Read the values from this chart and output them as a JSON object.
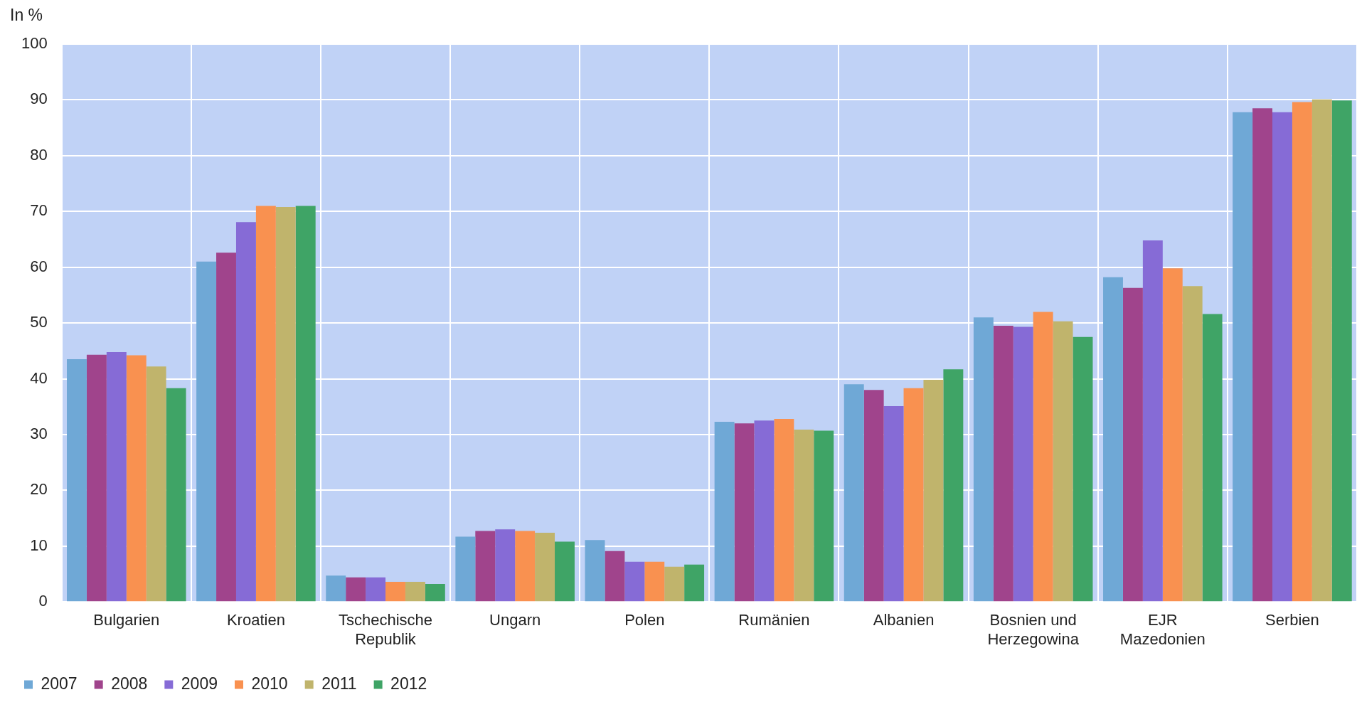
{
  "chart_data": {
    "type": "bar",
    "ylabel": "In %",
    "categories": [
      "Bulgarien",
      "Kroatien",
      "Tschechische Republik",
      "Ungarn",
      "Polen",
      "Rumänien",
      "Albanien",
      "Bosnien und Herzegowina",
      "EJR Mazedonien",
      "Serbien"
    ],
    "series": [
      {
        "name": "2007",
        "color": "#6fa8d6",
        "values": [
          43.5,
          61,
          4.7,
          11.7,
          11.1,
          32.3,
          39,
          51,
          58.2,
          87.8
        ]
      },
      {
        "name": "2008",
        "color": "#a0448c",
        "values": [
          44.3,
          62.6,
          4.4,
          12.7,
          9.1,
          32,
          38,
          49.5,
          56.3,
          88.5
        ]
      },
      {
        "name": "2009",
        "color": "#866bd6",
        "values": [
          44.8,
          68.1,
          4.4,
          13,
          7.2,
          32.5,
          35.1,
          49.3,
          64.8,
          87.8
        ]
      },
      {
        "name": "2010",
        "color": "#f99150",
        "values": [
          44.2,
          71,
          3.6,
          12.7,
          7.2,
          32.8,
          38.3,
          52,
          59.8,
          89.6
        ]
      },
      {
        "name": "2011",
        "color": "#c0b46c",
        "values": [
          42.2,
          70.8,
          3.6,
          12.4,
          6.3,
          30.9,
          39.8,
          50.3,
          56.6,
          90.1
        ]
      },
      {
        "name": "2012",
        "color": "#3fa466",
        "values": [
          38.3,
          71,
          3.2,
          10.8,
          6.7,
          30.7,
          41.7,
          47.5,
          51.6,
          89.9
        ]
      }
    ],
    "ylim": [
      0,
      100
    ],
    "yticks": [
      0,
      10,
      20,
      30,
      40,
      50,
      60,
      70,
      80,
      90,
      100
    ],
    "grid": true,
    "legend": "bottom left"
  }
}
